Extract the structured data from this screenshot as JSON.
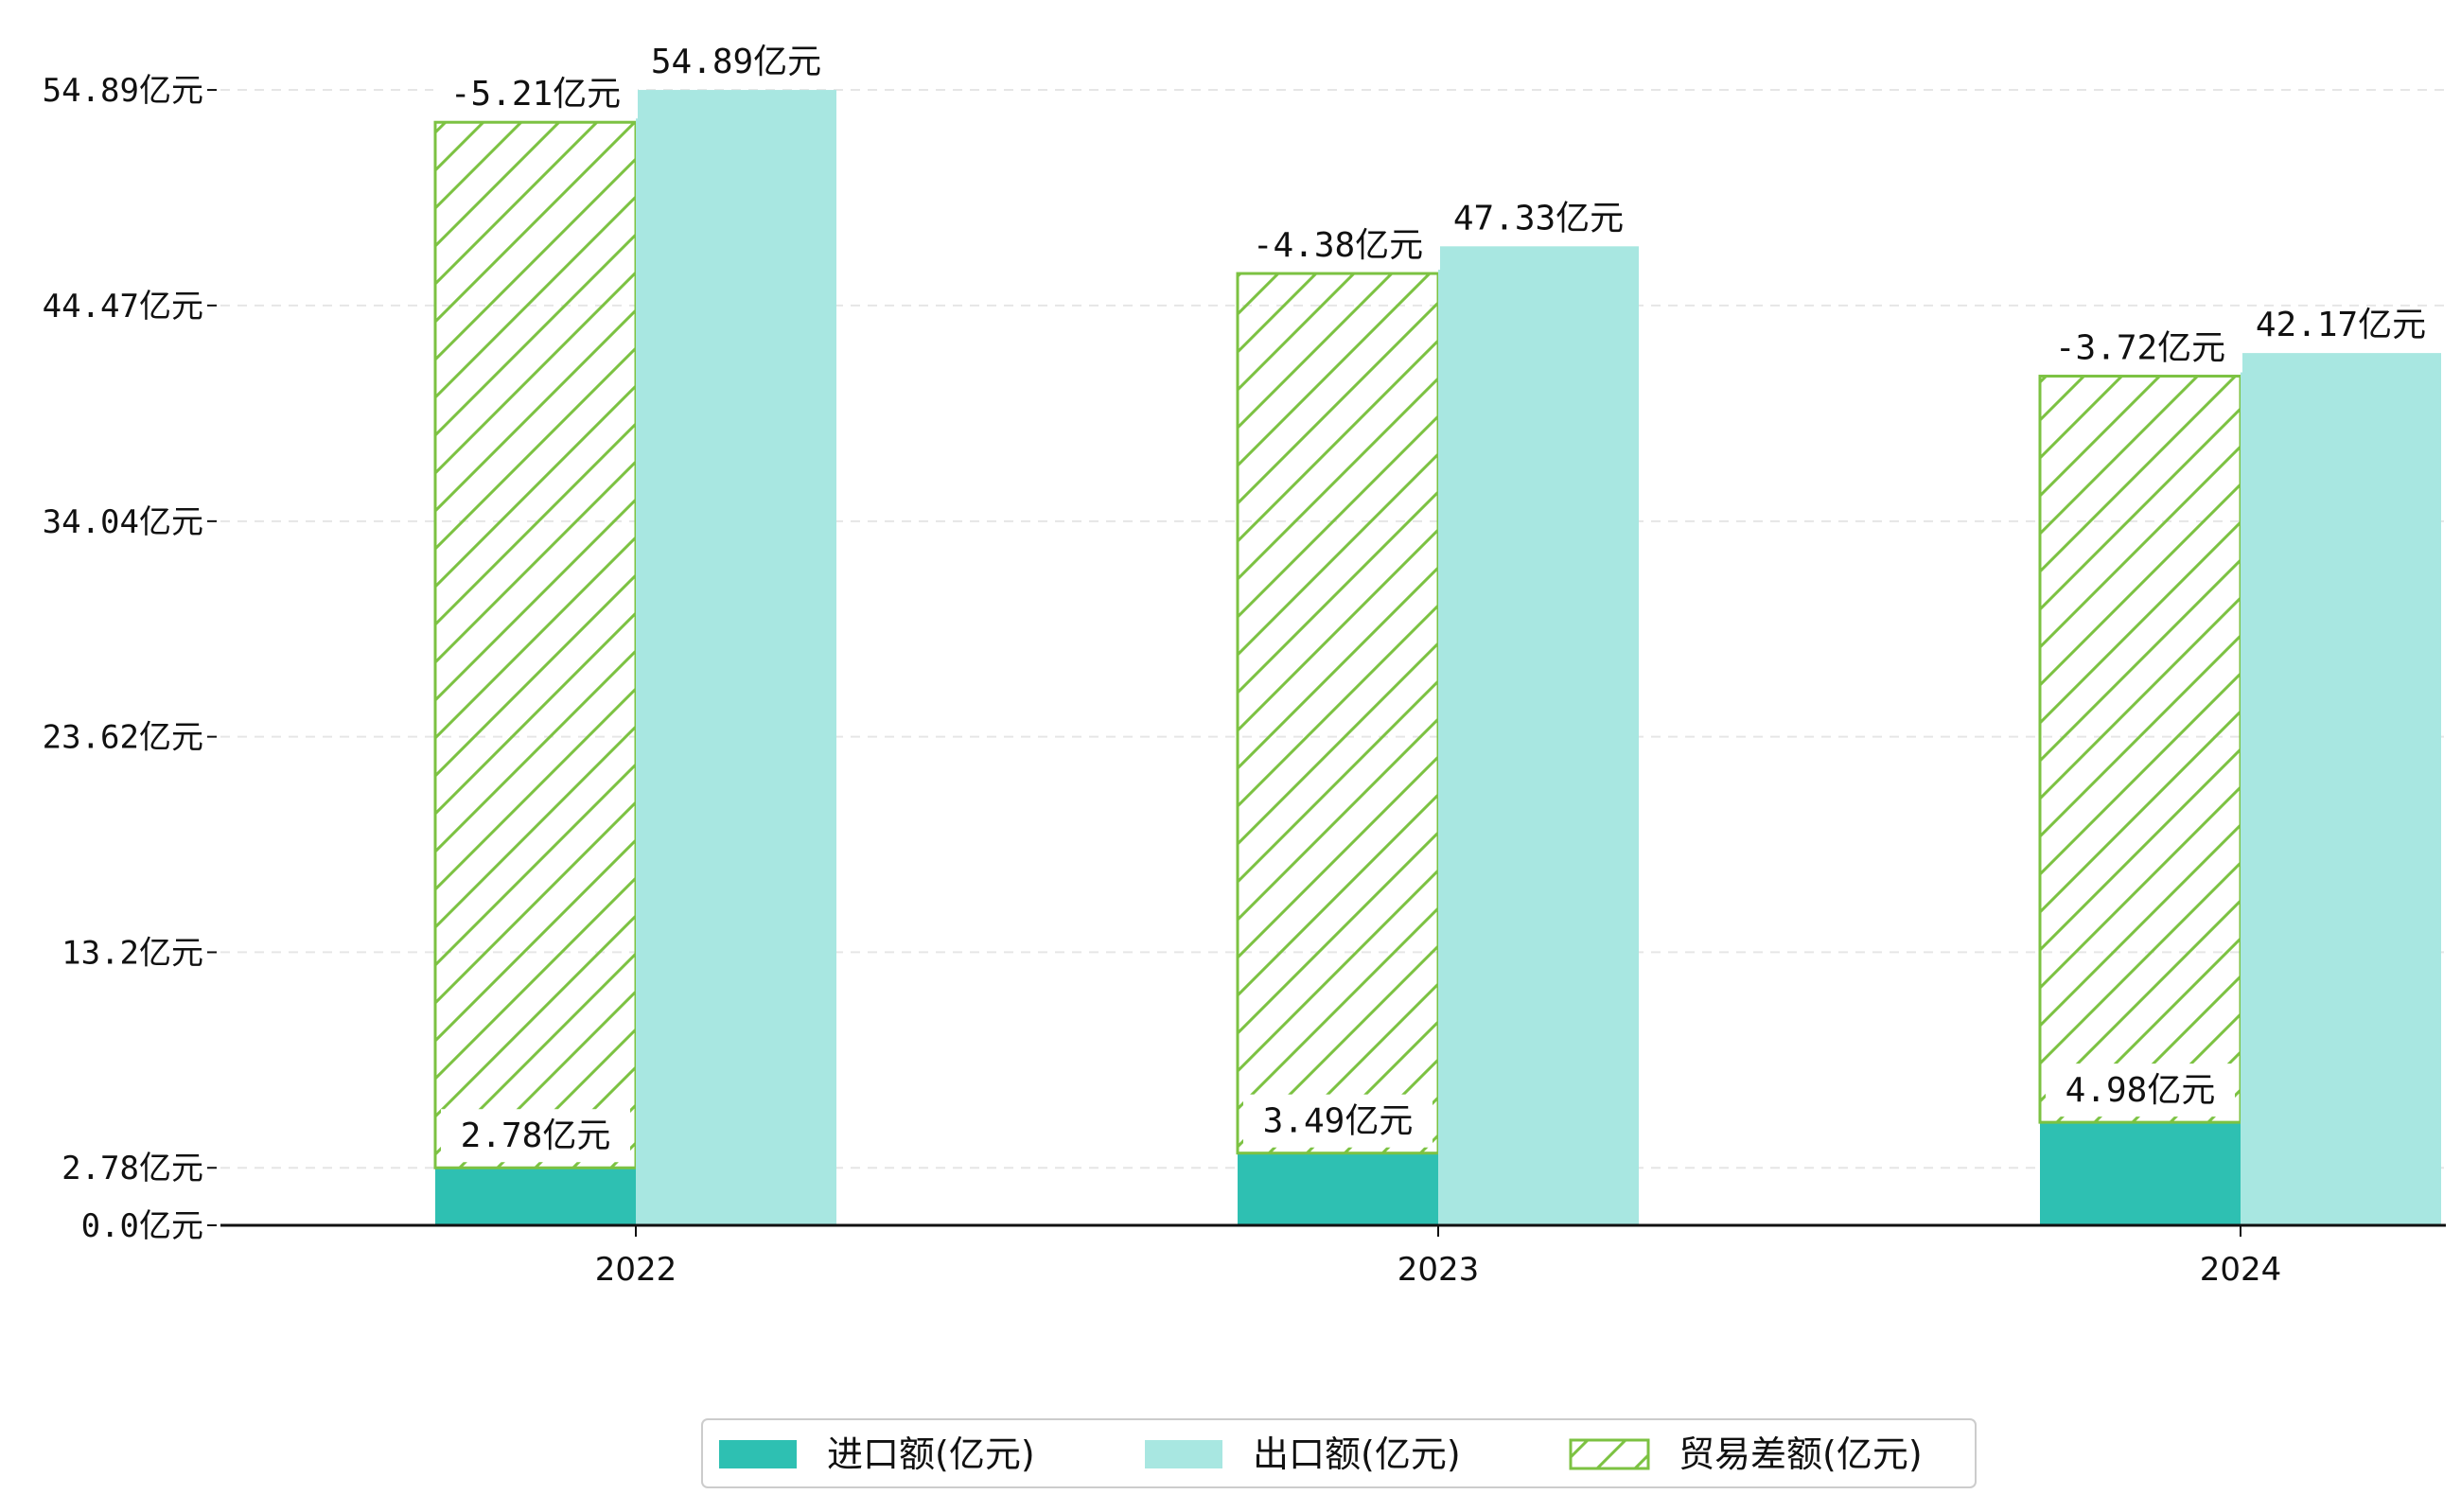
{
  "chart_data": {
    "type": "bar",
    "title": "",
    "xlabel": "",
    "ylabel": "",
    "categories": [
      "2022",
      "2023",
      "2024"
    ],
    "series": [
      {
        "name": "进口额(亿元)",
        "values": [
          2.78,
          3.49,
          4.98
        ],
        "labels": [
          "2.78亿元",
          "3.49亿元",
          "4.98亿元"
        ],
        "color": "#2EC0B2"
      },
      {
        "name": "出口额(亿元)",
        "values": [
          54.89,
          47.33,
          42.17
        ],
        "labels": [
          "54.89亿元",
          "47.33亿元",
          "42.17亿元"
        ],
        "color": "#A8E7E1"
      },
      {
        "name": "贸易差额(亿元)",
        "values": [
          -5.21,
          -4.38,
          -3.72
        ],
        "labels": [
          "-5.21亿元",
          "-4.38亿元",
          "-3.72亿元"
        ],
        "color": "#7CC242"
      }
    ],
    "yticks": [
      0.0,
      2.78,
      13.2,
      23.62,
      34.04,
      44.47,
      54.89
    ],
    "ytick_labels": [
      "0.0亿元",
      "2.78亿元",
      "13.2亿元",
      "23.62亿元",
      "34.04亿元",
      "44.47亿元",
      "54.89亿元"
    ],
    "ylim": [
      0,
      57.5
    ],
    "grid": true,
    "legend_position": "bottom-center"
  }
}
